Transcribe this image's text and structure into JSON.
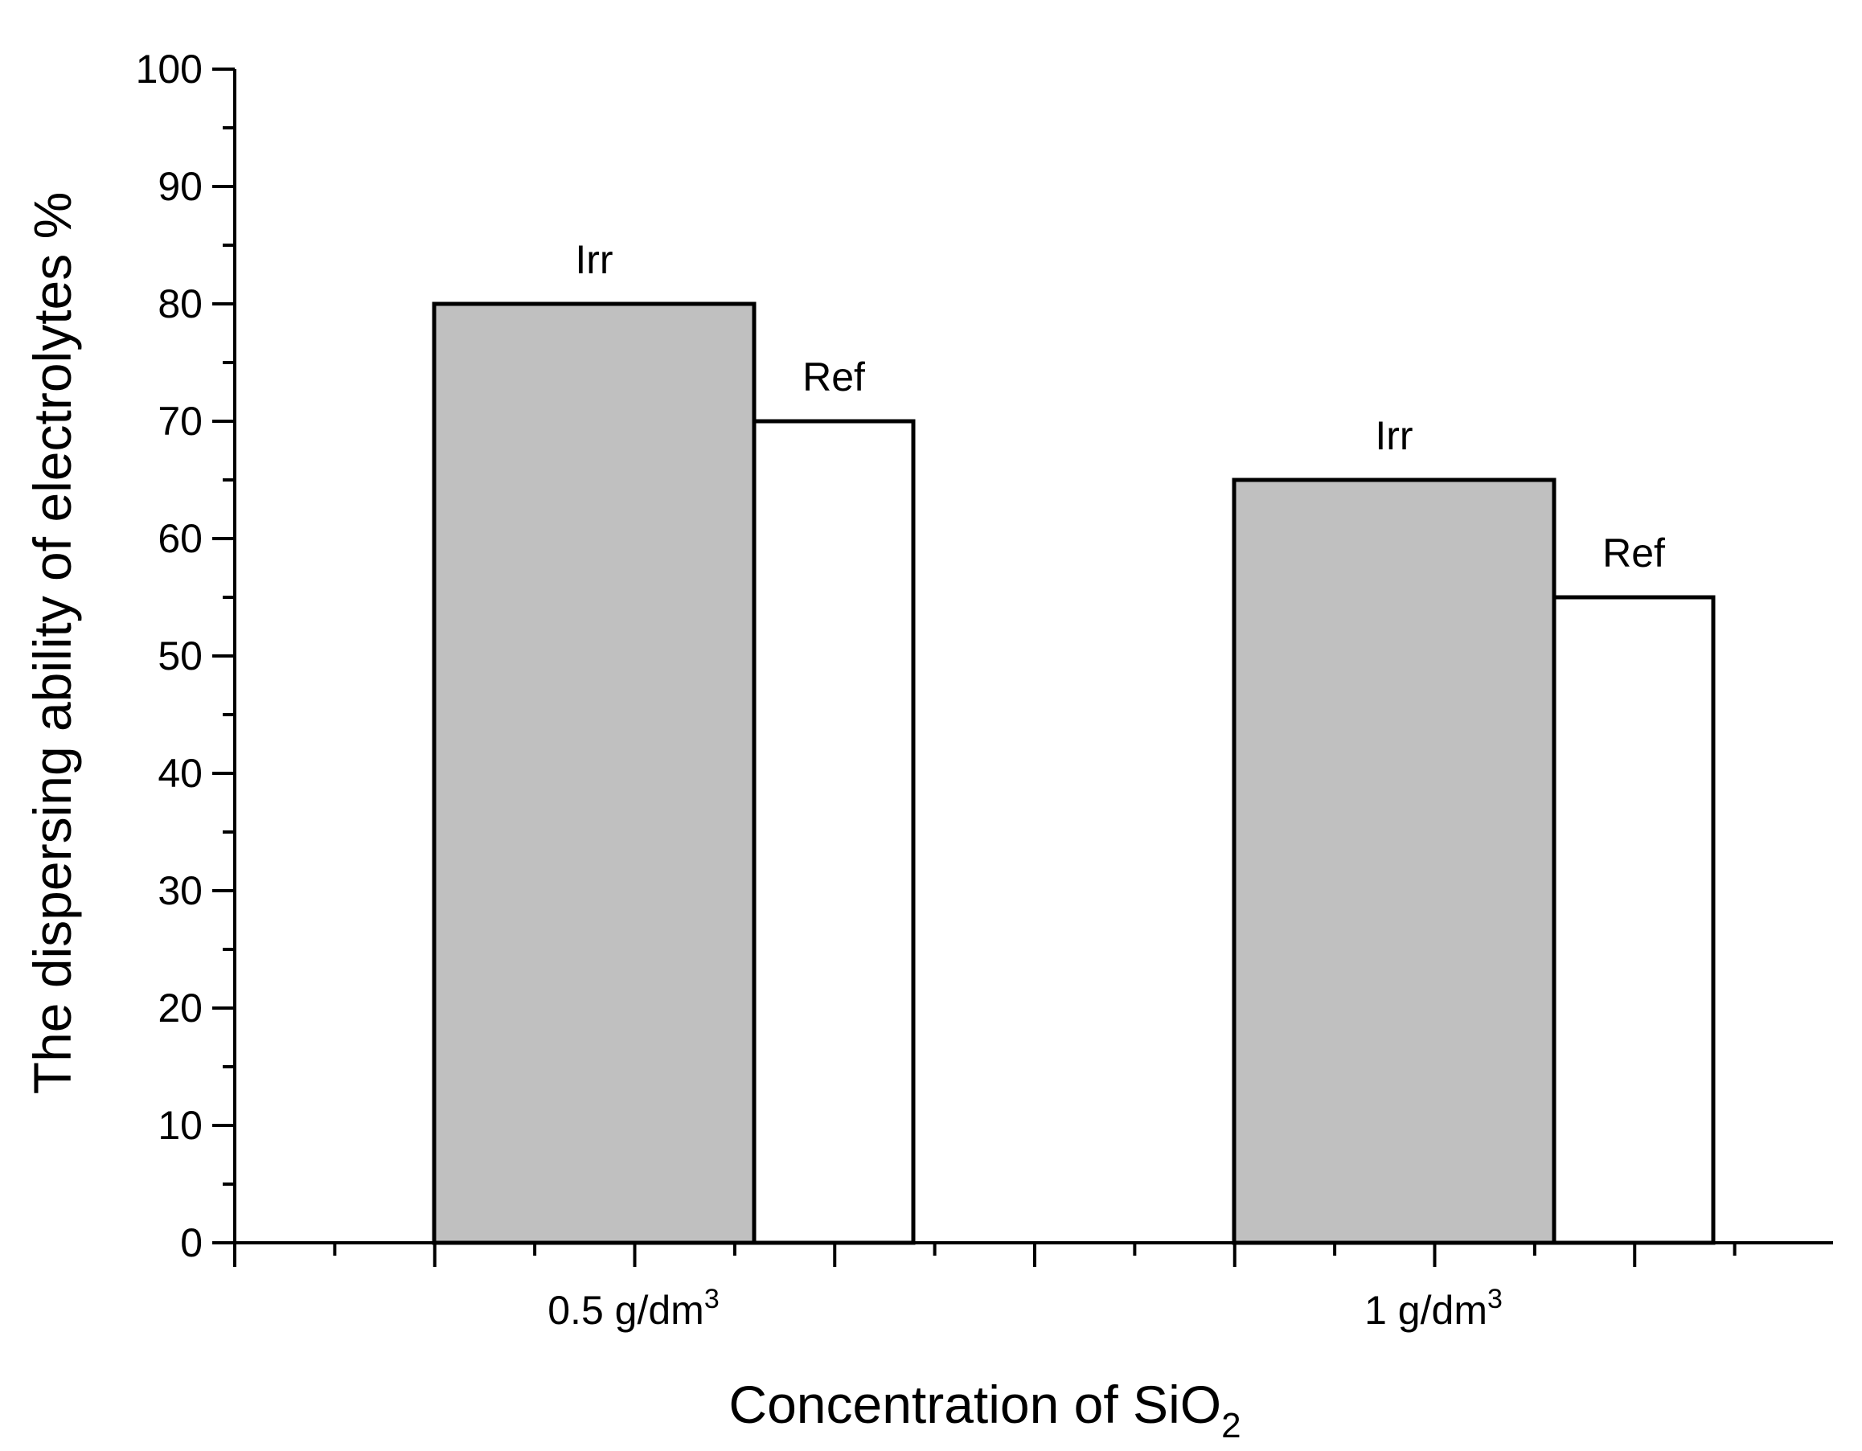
{
  "chart_data": {
    "type": "bar",
    "title": "",
    "xlabel": "Concentration of SiO",
    "xlabel_subscript": "2",
    "ylabel": "The dispersing ability  of electrolytes %",
    "ylim": [
      0,
      100
    ],
    "ytick_step": 10,
    "yticks": [
      "0",
      "10",
      "20",
      "30",
      "40",
      "50",
      "60",
      "70",
      "80",
      "90",
      "100"
    ],
    "categories": [
      {
        "label": "0.5 g/dm",
        "sup": "3"
      },
      {
        "label": "1 g/dm",
        "sup": "3"
      }
    ],
    "series": [
      {
        "name": "Irr",
        "values": [
          80,
          65
        ],
        "color": "#c0c0c0"
      },
      {
        "name": "Ref",
        "values": [
          70,
          55
        ],
        "color": "#ffffff"
      }
    ],
    "grid": false,
    "legend": "none"
  }
}
